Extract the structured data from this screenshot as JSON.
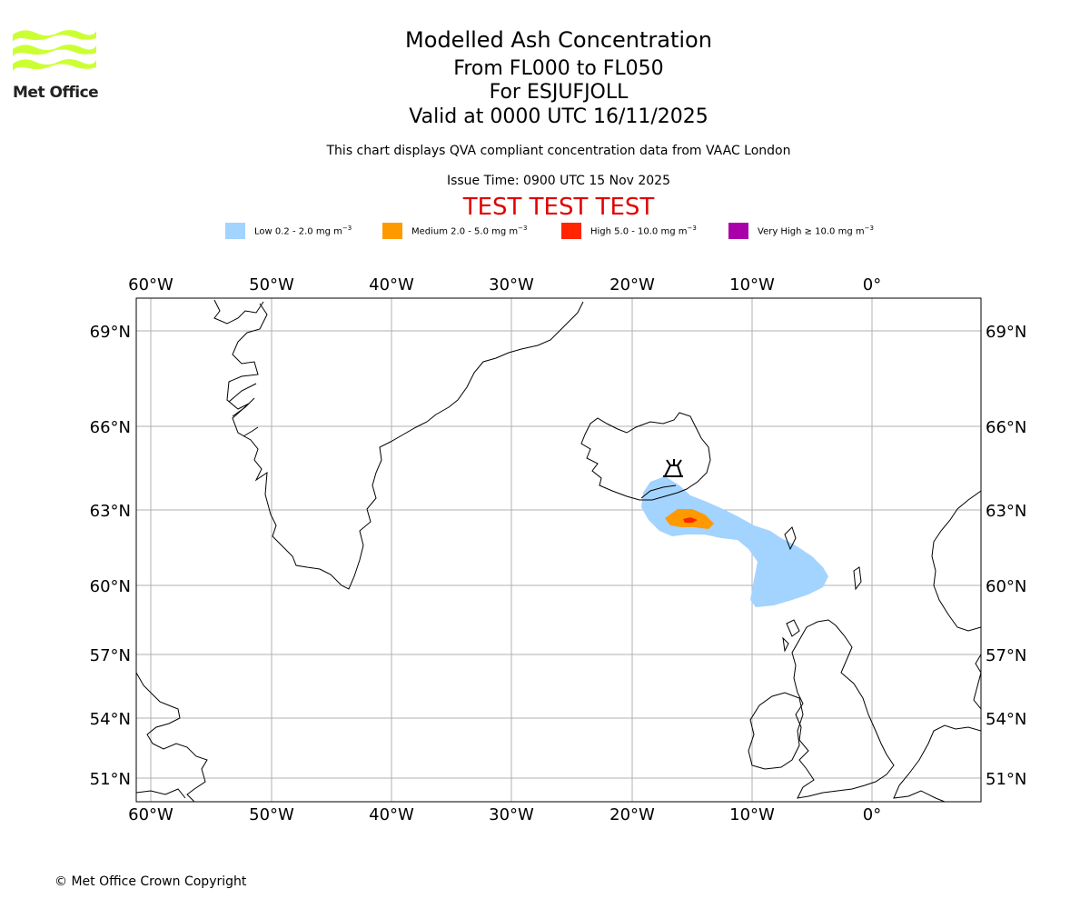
{
  "logo": {
    "text": "Met Office",
    "color": "#ccff33"
  },
  "header": {
    "title": "Modelled Ash Concentration",
    "level_range": "From FL000 to FL050",
    "volcano": "For ESJUFJOLL",
    "valid_time": "Valid at 0000 UTC 16/11/2025",
    "description": "This chart displays QVA compliant concentration data from VAAC London",
    "issue_time": "Issue Time: 0900 UTC 15 Nov 2025",
    "test_banner": "TEST TEST TEST"
  },
  "legend": [
    {
      "label_prefix": "Low 0.2 - 2.0 mg m",
      "exp": "−3",
      "color": "#a3d3ff"
    },
    {
      "label_prefix": "Medium 2.0 - 5.0 mg m",
      "exp": "−3",
      "color": "#ff9900"
    },
    {
      "label_prefix": "High 5.0 - 10.0 mg m",
      "exp": "−3",
      "color": "#ff2600"
    },
    {
      "label_prefix": "Very High ≥ 10.0 mg m",
      "exp": "−3",
      "color": "#aa00aa"
    }
  ],
  "map": {
    "lon_labels": [
      "60°W",
      "50°W",
      "40°W",
      "30°W",
      "20°W",
      "10°W",
      "0°"
    ],
    "lat_labels": [
      "69°N",
      "66°N",
      "63°N",
      "60°N",
      "57°N",
      "54°N",
      "51°N"
    ],
    "grid_color": "#b0b0b0",
    "volcano_marker": "volcano-icon"
  },
  "footer": {
    "copyright": "© Met Office Crown Copyright"
  }
}
